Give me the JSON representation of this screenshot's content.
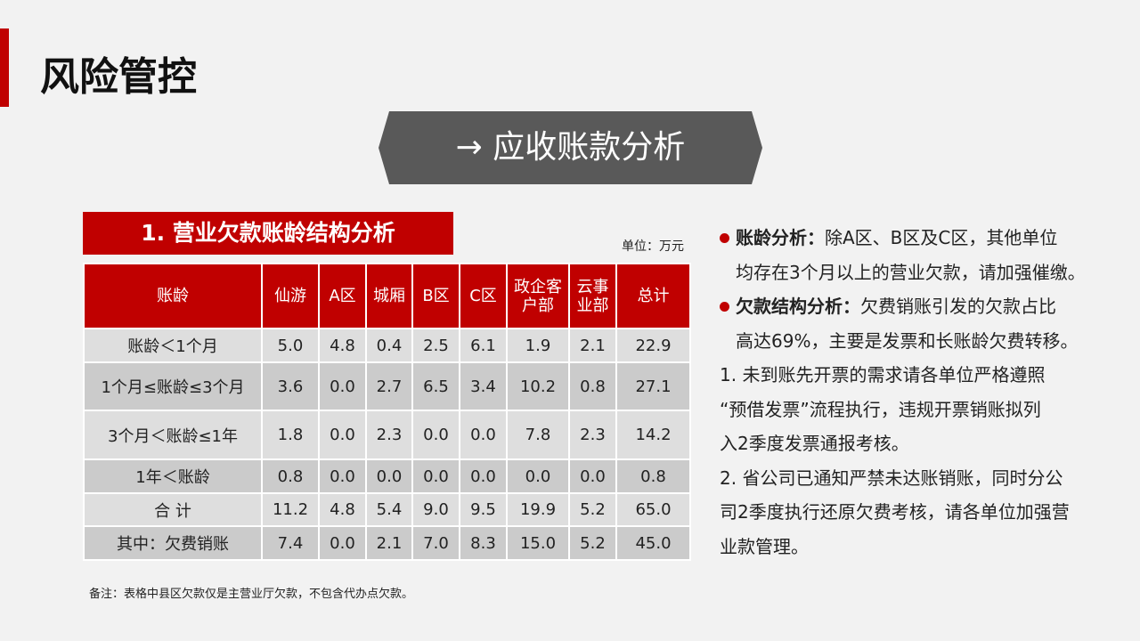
{
  "header": {
    "title": "风险管控"
  },
  "banner": {
    "arrow": "→",
    "title": "应收账款分析"
  },
  "table_title": "1. 营业欠款账龄结构分析",
  "unit": "单位：万元",
  "table": {
    "columns": [
      "账龄",
      "仙游",
      "A区",
      "城厢",
      "B区",
      "C区",
      "政企客户部",
      "云事业部",
      "总计"
    ],
    "rows": [
      [
        "账龄＜1个月",
        "5.0",
        "4.8",
        "0.4",
        "2.5",
        "6.1",
        "1.9",
        "2.1",
        "22.9"
      ],
      [
        "1个月≤账龄≤3个月",
        "3.6",
        "0.0",
        "2.7",
        "6.5",
        "3.4",
        "10.2",
        "0.8",
        "27.1"
      ],
      [
        "3个月＜账龄≤1年",
        "1.8",
        "0.0",
        "2.3",
        "0.0",
        "0.0",
        "7.8",
        "2.3",
        "14.2"
      ],
      [
        "1年＜账龄",
        "0.8",
        "0.0",
        "0.0",
        "0.0",
        "0.0",
        "0.0",
        "0.0",
        "0.8"
      ],
      [
        "合 计",
        "11.2",
        "4.8",
        "5.4",
        "9.0",
        "9.5",
        "19.9",
        "5.2",
        "65.0"
      ],
      [
        "其中：欠费销账",
        "7.4",
        "0.0",
        "2.1",
        "7.0",
        "8.3",
        "15.0",
        "5.2",
        "45.0"
      ]
    ]
  },
  "note": "备注：表格中县区欠款仅是主营业厅欠款，不包含代办点欠款。",
  "analysis": [
    {
      "label": "账龄分析：",
      "lines": [
        "除A区、B区及C区，其他单位",
        "均存在3个月以上的营业欠款，请加强催缴。"
      ]
    },
    {
      "label": "欠款结构分析：",
      "lines": [
        "欠费销账引发的欠款占比",
        "高达69%，主要是发票和长账龄欠费转移。"
      ]
    },
    {
      "lines": [
        "1. 未到账先开票的需求请各单位严格遵照",
        "“预借发票”流程执行，违规开票销账拟列",
        "入2季度发票通报考核。"
      ]
    },
    {
      "lines": [
        "2. 省公司已通知严禁未达账销账，同时分公",
        "司2季度执行还原欠费考核，请各单位加强营",
        "业款管理。"
      ]
    }
  ]
}
